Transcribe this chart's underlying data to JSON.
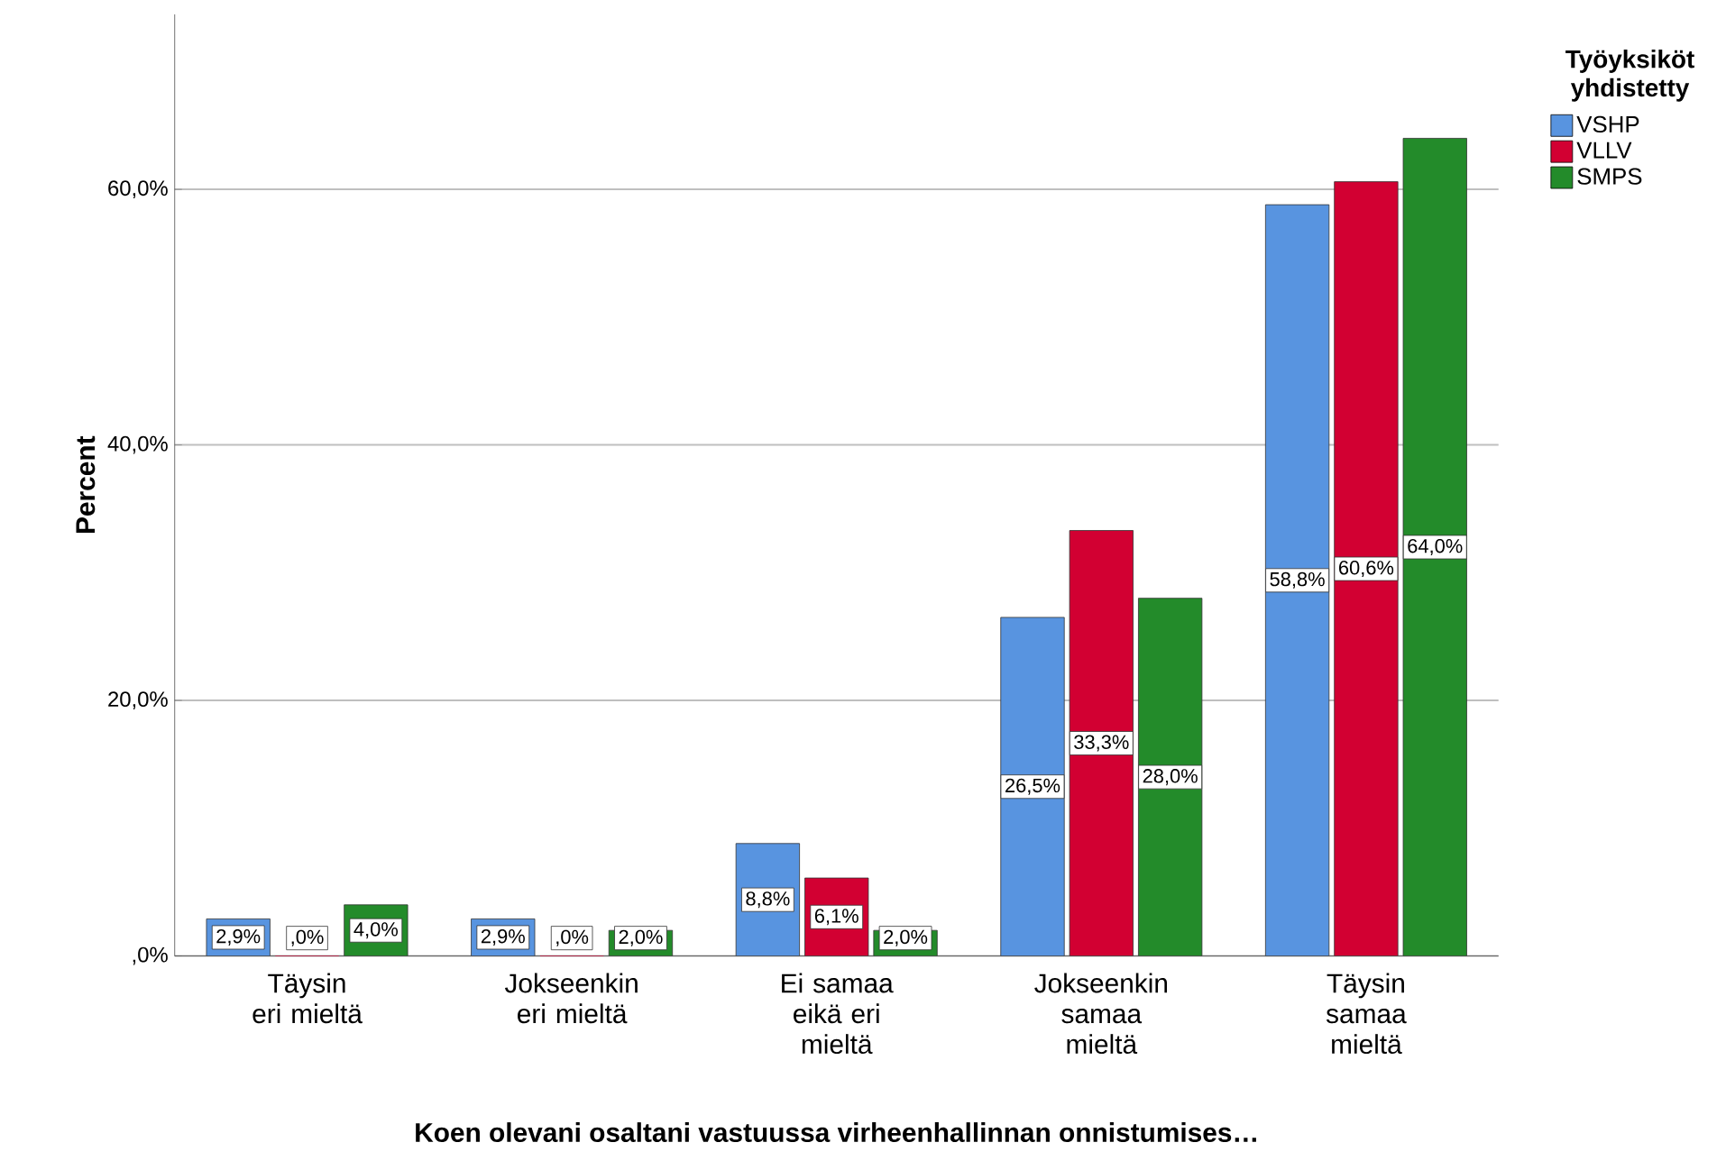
{
  "chart_data": {
    "type": "bar",
    "xlabel": "Koen olevani osaltani vastuussa virheenhallinnan onnistumises…",
    "ylabel": "Percent",
    "legend_title": "Työyksiköt yhdistetty",
    "categories": [
      "Täysin eri mieltä",
      "Jokseenkin eri mieltä",
      "Ei samaa eikä eri mieltä",
      "Jokseenkin samaa mieltä",
      "Täysin samaa mieltä"
    ],
    "series": [
      {
        "name": "VSHP",
        "color": "#5894e0",
        "values": [
          2.9,
          2.9,
          8.8,
          26.5,
          58.8
        ],
        "value_labels": [
          "2,9%",
          "2,9%",
          "8,8%",
          "26,5%",
          "58,8%"
        ]
      },
      {
        "name": "VLLV",
        "color": "#d20032",
        "values": [
          0,
          0,
          6.1,
          33.3,
          60.6
        ],
        "value_labels": [
          ",0%",
          ",0%",
          "6,1%",
          "33,3%",
          "60,6%"
        ]
      },
      {
        "name": "SMPS",
        "color": "#238b2a",
        "values": [
          4.0,
          2.0,
          2.0,
          28.0,
          64.0
        ],
        "value_labels": [
          "4,0%",
          "2,0%",
          "2,0%",
          "28,0%",
          "64,0%"
        ]
      }
    ],
    "ylim": [
      0,
      73.7
    ],
    "yticks": [
      {
        "value": 0,
        "label": ",0%"
      },
      {
        "value": 20,
        "label": "20,0%"
      },
      {
        "value": 40,
        "label": "40,0%"
      },
      {
        "value": 60,
        "label": "60,0%"
      }
    ],
    "grid": "y",
    "legend": "top right"
  }
}
